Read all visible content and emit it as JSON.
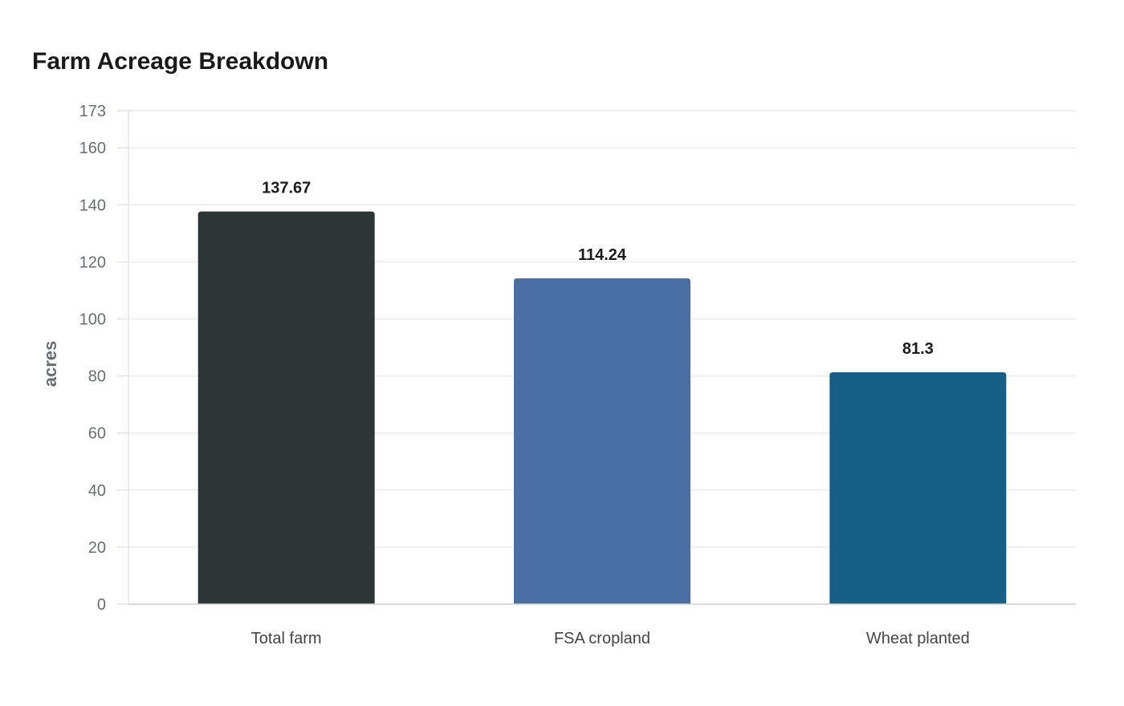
{
  "chart_data": {
    "type": "bar",
    "title": "Farm Acreage Breakdown",
    "xlabel": "",
    "ylabel": "acres",
    "categories": [
      "Total farm",
      "FSA cropland",
      "Wheat planted"
    ],
    "values": [
      137.67,
      114.24,
      81.3
    ],
    "data_labels": [
      "137.67",
      "114.24",
      "81.3"
    ],
    "colors": [
      "#2d3436",
      "#4a6fa5",
      "#166088"
    ],
    "ylim": [
      0,
      173
    ],
    "yticks": [
      0,
      20,
      40,
      60,
      80,
      100,
      120,
      140,
      160,
      173
    ],
    "grid": true
  }
}
